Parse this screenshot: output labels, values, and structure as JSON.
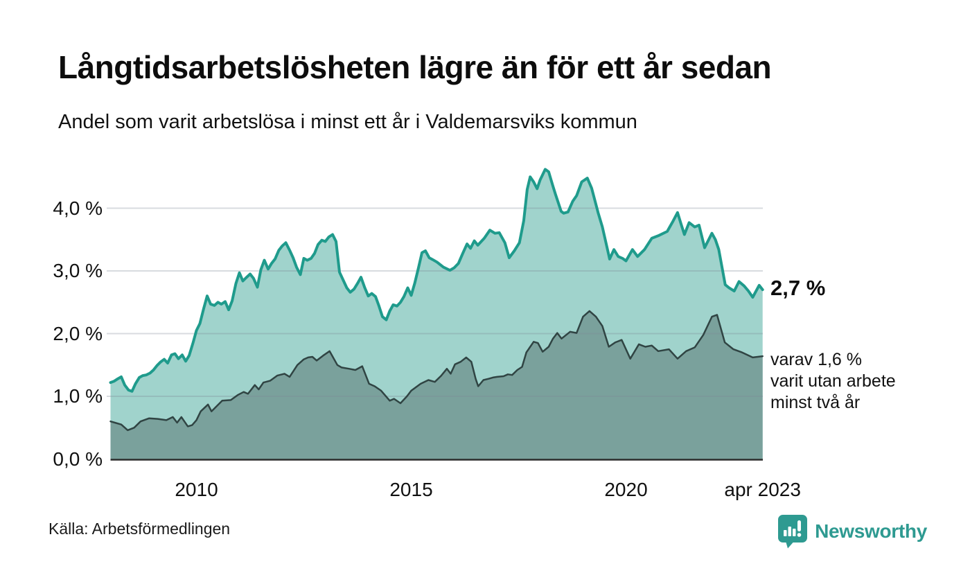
{
  "header": {
    "title": "Långtidsarbetslösheten lägre än för ett år sedan",
    "subtitle": "Andel som varit arbetslösa i minst ett år i Valdemarsviks kommun"
  },
  "chart_data": {
    "type": "area",
    "title": "Långtidsarbetslösheten lägre än för ett år sedan",
    "subtitle": "Andel som varit arbetslösa i minst ett år i Valdemarsviks kommun",
    "unit": "%",
    "xlim": [
      2008.0,
      2023.18
    ],
    "ylim": [
      0,
      4.77
    ],
    "grid": "horizontal",
    "x_ticks": [
      {
        "label": "2010",
        "year": 2010
      },
      {
        "label": "2015",
        "year": 2015
      },
      {
        "label": "2020",
        "year": 2020
      },
      {
        "label": "apr 2023",
        "year": 2023.18
      }
    ],
    "y_ticks": [
      {
        "label": "0,0 %",
        "value": 0
      },
      {
        "label": "1,0 %",
        "value": 1
      },
      {
        "label": "2,0 %",
        "value": 2
      },
      {
        "label": "3,0 %",
        "value": 3
      },
      {
        "label": "4,0 %",
        "value": 4
      }
    ],
    "series": [
      {
        "name": "Arbetslösa minst ett år",
        "line_color": "#1f9b8c",
        "fill_color": "#a0d3cc",
        "line_width": 4,
        "points": [
          [
            2008.0,
            1.22
          ],
          [
            2008.08,
            1.24
          ],
          [
            2008.17,
            1.28
          ],
          [
            2008.25,
            1.31
          ],
          [
            2008.33,
            1.18
          ],
          [
            2008.42,
            1.1
          ],
          [
            2008.5,
            1.08
          ],
          [
            2008.58,
            1.2
          ],
          [
            2008.67,
            1.3
          ],
          [
            2008.75,
            1.33
          ],
          [
            2008.83,
            1.34
          ],
          [
            2008.92,
            1.37
          ],
          [
            2009.0,
            1.42
          ],
          [
            2009.08,
            1.49
          ],
          [
            2009.17,
            1.55
          ],
          [
            2009.25,
            1.59
          ],
          [
            2009.33,
            1.53
          ],
          [
            2009.42,
            1.66
          ],
          [
            2009.5,
            1.68
          ],
          [
            2009.58,
            1.6
          ],
          [
            2009.67,
            1.66
          ],
          [
            2009.75,
            1.56
          ],
          [
            2009.83,
            1.65
          ],
          [
            2009.92,
            1.85
          ],
          [
            2010.0,
            2.05
          ],
          [
            2010.08,
            2.16
          ],
          [
            2010.17,
            2.4
          ],
          [
            2010.25,
            2.6
          ],
          [
            2010.33,
            2.47
          ],
          [
            2010.42,
            2.45
          ],
          [
            2010.5,
            2.5
          ],
          [
            2010.58,
            2.47
          ],
          [
            2010.67,
            2.51
          ],
          [
            2010.75,
            2.38
          ],
          [
            2010.83,
            2.52
          ],
          [
            2010.92,
            2.8
          ],
          [
            2011.0,
            2.97
          ],
          [
            2011.08,
            2.84
          ],
          [
            2011.17,
            2.9
          ],
          [
            2011.25,
            2.95
          ],
          [
            2011.33,
            2.88
          ],
          [
            2011.42,
            2.74
          ],
          [
            2011.5,
            3.02
          ],
          [
            2011.58,
            3.17
          ],
          [
            2011.67,
            3.03
          ],
          [
            2011.75,
            3.12
          ],
          [
            2011.83,
            3.19
          ],
          [
            2011.92,
            3.33
          ],
          [
            2012.0,
            3.4
          ],
          [
            2012.08,
            3.45
          ],
          [
            2012.17,
            3.33
          ],
          [
            2012.25,
            3.21
          ],
          [
            2012.33,
            3.06
          ],
          [
            2012.42,
            2.94
          ],
          [
            2012.5,
            3.2
          ],
          [
            2012.58,
            3.17
          ],
          [
            2012.67,
            3.2
          ],
          [
            2012.75,
            3.28
          ],
          [
            2012.83,
            3.42
          ],
          [
            2012.92,
            3.49
          ],
          [
            2013.0,
            3.47
          ],
          [
            2013.08,
            3.54
          ],
          [
            2013.17,
            3.58
          ],
          [
            2013.25,
            3.47
          ],
          [
            2013.33,
            2.98
          ],
          [
            2013.42,
            2.85
          ],
          [
            2013.5,
            2.73
          ],
          [
            2013.58,
            2.66
          ],
          [
            2013.67,
            2.71
          ],
          [
            2013.75,
            2.8
          ],
          [
            2013.83,
            2.9
          ],
          [
            2013.92,
            2.73
          ],
          [
            2014.0,
            2.6
          ],
          [
            2014.08,
            2.64
          ],
          [
            2014.17,
            2.59
          ],
          [
            2014.25,
            2.44
          ],
          [
            2014.33,
            2.27
          ],
          [
            2014.42,
            2.22
          ],
          [
            2014.5,
            2.36
          ],
          [
            2014.58,
            2.46
          ],
          [
            2014.67,
            2.44
          ],
          [
            2014.75,
            2.5
          ],
          [
            2014.83,
            2.59
          ],
          [
            2014.92,
            2.73
          ],
          [
            2015.0,
            2.61
          ],
          [
            2015.08,
            2.8
          ],
          [
            2015.17,
            3.05
          ],
          [
            2015.25,
            3.29
          ],
          [
            2015.33,
            3.32
          ],
          [
            2015.42,
            3.21
          ],
          [
            2015.5,
            3.18
          ],
          [
            2015.6,
            3.14
          ],
          [
            2015.75,
            3.06
          ],
          [
            2015.9,
            3.01
          ],
          [
            2016.0,
            3.05
          ],
          [
            2016.1,
            3.12
          ],
          [
            2016.2,
            3.28
          ],
          [
            2016.3,
            3.43
          ],
          [
            2016.38,
            3.36
          ],
          [
            2016.47,
            3.48
          ],
          [
            2016.55,
            3.41
          ],
          [
            2016.7,
            3.52
          ],
          [
            2016.83,
            3.65
          ],
          [
            2016.95,
            3.6
          ],
          [
            2017.05,
            3.61
          ],
          [
            2017.18,
            3.45
          ],
          [
            2017.28,
            3.21
          ],
          [
            2017.4,
            3.32
          ],
          [
            2017.52,
            3.45
          ],
          [
            2017.62,
            3.8
          ],
          [
            2017.7,
            4.3
          ],
          [
            2017.77,
            4.5
          ],
          [
            2017.85,
            4.42
          ],
          [
            2017.93,
            4.31
          ],
          [
            2018.0,
            4.45
          ],
          [
            2018.12,
            4.62
          ],
          [
            2018.2,
            4.58
          ],
          [
            2018.3,
            4.35
          ],
          [
            2018.36,
            4.22
          ],
          [
            2018.49,
            3.95
          ],
          [
            2018.55,
            3.92
          ],
          [
            2018.65,
            3.94
          ],
          [
            2018.76,
            4.11
          ],
          [
            2018.85,
            4.2
          ],
          [
            2018.97,
            4.42
          ],
          [
            2019.1,
            4.48
          ],
          [
            2019.2,
            4.32
          ],
          [
            2019.35,
            3.93
          ],
          [
            2019.45,
            3.7
          ],
          [
            2019.55,
            3.4
          ],
          [
            2019.62,
            3.19
          ],
          [
            2019.72,
            3.34
          ],
          [
            2019.82,
            3.23
          ],
          [
            2019.92,
            3.2
          ],
          [
            2020.0,
            3.16
          ],
          [
            2020.15,
            3.34
          ],
          [
            2020.27,
            3.23
          ],
          [
            2020.43,
            3.34
          ],
          [
            2020.6,
            3.52
          ],
          [
            2020.75,
            3.56
          ],
          [
            2020.96,
            3.63
          ],
          [
            2021.1,
            3.8
          ],
          [
            2021.2,
            3.93
          ],
          [
            2021.28,
            3.75
          ],
          [
            2021.36,
            3.58
          ],
          [
            2021.47,
            3.77
          ],
          [
            2021.6,
            3.7
          ],
          [
            2021.7,
            3.73
          ],
          [
            2021.83,
            3.37
          ],
          [
            2022.0,
            3.6
          ],
          [
            2022.08,
            3.5
          ],
          [
            2022.16,
            3.34
          ],
          [
            2022.31,
            2.78
          ],
          [
            2022.4,
            2.73
          ],
          [
            2022.52,
            2.68
          ],
          [
            2022.63,
            2.83
          ],
          [
            2022.75,
            2.76
          ],
          [
            2022.85,
            2.68
          ],
          [
            2022.95,
            2.58
          ],
          [
            2023.1,
            2.77
          ],
          [
            2023.18,
            2.7
          ]
        ]
      },
      {
        "name": "Arbetslösa minst två år",
        "line_color": "#304443",
        "fill_color": "#7aa19c",
        "line_width": 2.5,
        "points": [
          [
            2008.0,
            0.6
          ],
          [
            2008.1,
            0.58
          ],
          [
            2008.25,
            0.55
          ],
          [
            2008.4,
            0.46
          ],
          [
            2008.55,
            0.5
          ],
          [
            2008.7,
            0.6
          ],
          [
            2008.9,
            0.65
          ],
          [
            2009.1,
            0.64
          ],
          [
            2009.3,
            0.62
          ],
          [
            2009.45,
            0.67
          ],
          [
            2009.55,
            0.58
          ],
          [
            2009.65,
            0.67
          ],
          [
            2009.8,
            0.52
          ],
          [
            2009.9,
            0.54
          ],
          [
            2010.0,
            0.62
          ],
          [
            2010.1,
            0.76
          ],
          [
            2010.27,
            0.87
          ],
          [
            2010.35,
            0.76
          ],
          [
            2010.6,
            0.93
          ],
          [
            2010.8,
            0.94
          ],
          [
            2010.96,
            1.02
          ],
          [
            2011.1,
            1.07
          ],
          [
            2011.2,
            1.04
          ],
          [
            2011.36,
            1.18
          ],
          [
            2011.45,
            1.11
          ],
          [
            2011.56,
            1.22
          ],
          [
            2011.72,
            1.25
          ],
          [
            2011.88,
            1.33
          ],
          [
            2012.05,
            1.36
          ],
          [
            2012.17,
            1.31
          ],
          [
            2012.35,
            1.5
          ],
          [
            2012.5,
            1.59
          ],
          [
            2012.6,
            1.62
          ],
          [
            2012.7,
            1.63
          ],
          [
            2012.8,
            1.57
          ],
          [
            2012.95,
            1.65
          ],
          [
            2013.1,
            1.72
          ],
          [
            2013.28,
            1.5
          ],
          [
            2013.38,
            1.46
          ],
          [
            2013.55,
            1.44
          ],
          [
            2013.7,
            1.42
          ],
          [
            2013.86,
            1.48
          ],
          [
            2014.02,
            1.2
          ],
          [
            2014.15,
            1.16
          ],
          [
            2014.3,
            1.09
          ],
          [
            2014.5,
            0.93
          ],
          [
            2014.6,
            0.96
          ],
          [
            2014.75,
            0.89
          ],
          [
            2014.9,
            1.0
          ],
          [
            2015.0,
            1.09
          ],
          [
            2015.22,
            1.2
          ],
          [
            2015.4,
            1.26
          ],
          [
            2015.55,
            1.23
          ],
          [
            2015.7,
            1.33
          ],
          [
            2015.83,
            1.44
          ],
          [
            2015.92,
            1.36
          ],
          [
            2016.02,
            1.51
          ],
          [
            2016.15,
            1.55
          ],
          [
            2016.28,
            1.62
          ],
          [
            2016.4,
            1.55
          ],
          [
            2016.5,
            1.28
          ],
          [
            2016.56,
            1.16
          ],
          [
            2016.68,
            1.26
          ],
          [
            2016.8,
            1.28
          ],
          [
            2016.9,
            1.3
          ],
          [
            2017.0,
            1.31
          ],
          [
            2017.15,
            1.32
          ],
          [
            2017.25,
            1.35
          ],
          [
            2017.35,
            1.34
          ],
          [
            2017.47,
            1.42
          ],
          [
            2017.58,
            1.47
          ],
          [
            2017.68,
            1.7
          ],
          [
            2017.85,
            1.87
          ],
          [
            2017.95,
            1.85
          ],
          [
            2018.06,
            1.71
          ],
          [
            2018.2,
            1.79
          ],
          [
            2018.3,
            1.92
          ],
          [
            2018.4,
            2.01
          ],
          [
            2018.5,
            1.92
          ],
          [
            2018.7,
            2.03
          ],
          [
            2018.85,
            2.01
          ],
          [
            2019.0,
            2.27
          ],
          [
            2019.15,
            2.36
          ],
          [
            2019.3,
            2.27
          ],
          [
            2019.45,
            2.12
          ],
          [
            2019.6,
            1.79
          ],
          [
            2019.75,
            1.86
          ],
          [
            2019.9,
            1.9
          ],
          [
            2020.1,
            1.6
          ],
          [
            2020.3,
            1.83
          ],
          [
            2020.45,
            1.79
          ],
          [
            2020.6,
            1.81
          ],
          [
            2020.75,
            1.72
          ],
          [
            2021.0,
            1.75
          ],
          [
            2021.2,
            1.6
          ],
          [
            2021.4,
            1.72
          ],
          [
            2021.6,
            1.78
          ],
          [
            2021.8,
            1.98
          ],
          [
            2022.0,
            2.27
          ],
          [
            2022.12,
            2.3
          ],
          [
            2022.3,
            1.86
          ],
          [
            2022.5,
            1.75
          ],
          [
            2022.7,
            1.7
          ],
          [
            2022.95,
            1.62
          ],
          [
            2023.18,
            1.64
          ]
        ]
      }
    ],
    "annotations": {
      "latest_long_term": "2,7 %",
      "latest_very_long_term": "varav 1,6 %\nvarit utan arbete\nminst två år"
    },
    "legend_position": "none"
  },
  "footer": {
    "source": "Källa: Arbetsförmedlingen",
    "brand": "Newsworthy",
    "brand_color": "#2e9a91"
  },
  "colors": {
    "line_main": "#1f9b8c",
    "fill_main": "#a0d3cc",
    "line_dark": "#304443",
    "fill_dark": "#7aa19c",
    "gridline": "#e2e3e8",
    "axis": "#2d2d2d"
  }
}
